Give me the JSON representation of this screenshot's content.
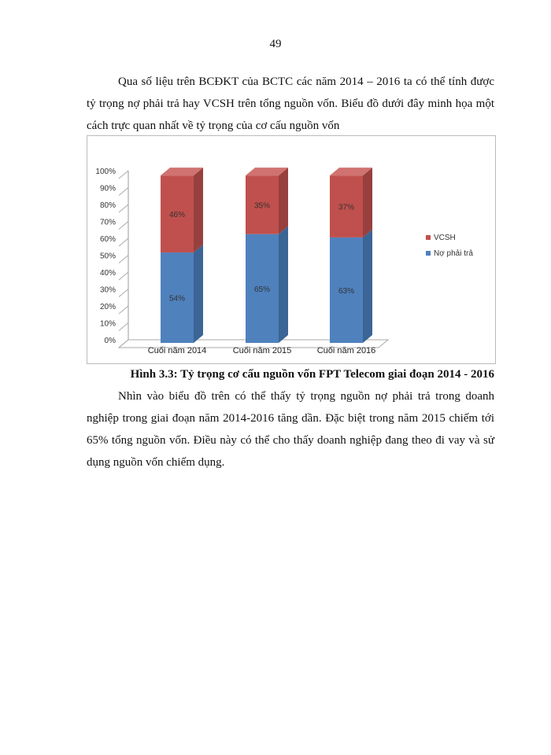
{
  "page_number": "49",
  "paragraph1": "Qua số liệu trên BCĐKT  của BCTC  các năm 2014 – 2016 ta có thể tính được tỷ trọng nợ phải trả hay VCSH  trên tổng nguồn vốn.  Biểu đồ dưới đây minh họa một cách trực quan nhất về tỷ trọng của cơ cấu nguồn vốn",
  "caption": "Hình 3.3: Tỷ  trọng cơ cấu nguồn vốn FPT Telecom giai đoạn 2014 - 2016",
  "paragraph2": "Nhìn vào  biểu đồ trên có thể thấy tỷ trọng nguồn nợ phải trả trong doanh nghiệp trong giai đoạn năm 2014-2016 tăng dần.  Đặc biệt trong năm 2015 chiếm tới 65% tổng nguồn vốn.  Điều này có thể cho thấy doanh nghiệp đang theo đi vay  và sử dụng nguồn vốn  chiếm dụng.",
  "chart_data": {
    "type": "bar",
    "stacked": true,
    "style": "3d-stacked-100",
    "categories": [
      "Cuối năm 2014",
      "Cuối năm 2015",
      "Cuối năm 2016"
    ],
    "series": [
      {
        "name": "Nợ phải trả",
        "values": [
          54,
          65,
          63
        ],
        "labels": [
          "54%",
          "65%",
          "63%"
        ],
        "color": "#4F81BD"
      },
      {
        "name": "VCSH",
        "values": [
          46,
          35,
          37
        ],
        "labels": [
          "46%",
          "35%",
          "37%"
        ],
        "color": "#C0504D"
      }
    ],
    "yticks": [
      "0%",
      "10%",
      "20%",
      "30%",
      "40%",
      "50%",
      "60%",
      "70%",
      "80%",
      "90%",
      "100%"
    ],
    "ylim": [
      0,
      100
    ],
    "legend": "right",
    "grid": false
  }
}
